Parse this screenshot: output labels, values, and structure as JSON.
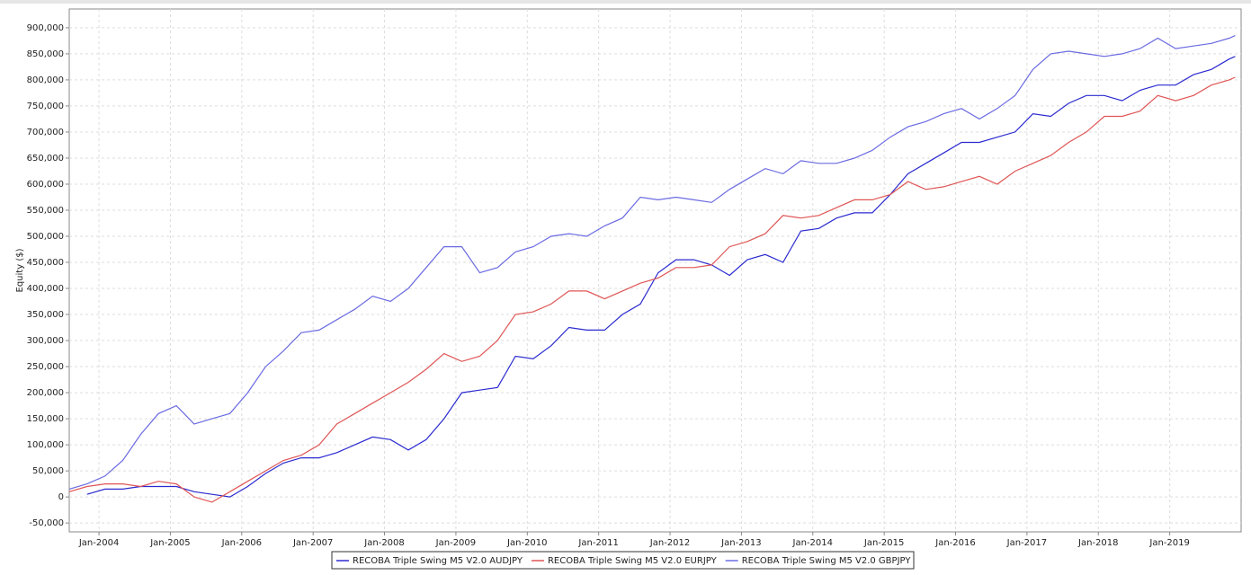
{
  "chart_data": {
    "type": "line",
    "y_label": "Equity ($)",
    "x": [
      "2003-08",
      "2003-11",
      "2004-02",
      "2004-05",
      "2004-08",
      "2004-11",
      "2005-02",
      "2005-05",
      "2005-08",
      "2005-11",
      "2006-02",
      "2006-05",
      "2006-08",
      "2006-11",
      "2007-02",
      "2007-05",
      "2007-08",
      "2007-11",
      "2008-02",
      "2008-05",
      "2008-08",
      "2008-11",
      "2009-02",
      "2009-05",
      "2009-08",
      "2009-11",
      "2010-02",
      "2010-05",
      "2010-08",
      "2010-11",
      "2011-02",
      "2011-05",
      "2011-08",
      "2011-11",
      "2012-02",
      "2012-05",
      "2012-08",
      "2012-11",
      "2013-02",
      "2013-05",
      "2013-08",
      "2013-11",
      "2014-02",
      "2014-05",
      "2014-08",
      "2014-11",
      "2015-02",
      "2015-05",
      "2015-08",
      "2015-11",
      "2016-02",
      "2016-05",
      "2016-08",
      "2016-11",
      "2017-02",
      "2017-05",
      "2017-08",
      "2017-11",
      "2018-02",
      "2018-05",
      "2018-08",
      "2018-11",
      "2019-02",
      "2019-05",
      "2019-08",
      "2019-11",
      "2019-12"
    ],
    "series": [
      {
        "name": "RECOBA Triple Swing M5 V2.0 AUDJPY",
        "color": "#2a2ad0",
        "values": [
          null,
          5000,
          15000,
          15000,
          20000,
          20000,
          20000,
          10000,
          5000,
          0,
          20000,
          45000,
          65000,
          75000,
          75000,
          85000,
          100000,
          115000,
          110000,
          90000,
          110000,
          150000,
          200000,
          205000,
          210000,
          270000,
          265000,
          290000,
          325000,
          320000,
          320000,
          350000,
          370000,
          430000,
          455000,
          455000,
          445000,
          425000,
          455000,
          465000,
          450000,
          510000,
          515000,
          535000,
          545000,
          545000,
          580000,
          620000,
          640000,
          660000,
          680000,
          680000,
          690000,
          700000,
          735000,
          730000,
          755000,
          770000,
          770000,
          760000,
          780000,
          790000,
          790000,
          810000,
          820000,
          840000,
          845000
        ]
      },
      {
        "name": "RECOBA Triple Swing M5 V2.0 EURJPY",
        "color": "#e05555",
        "values": [
          10000,
          20000,
          25000,
          25000,
          20000,
          30000,
          25000,
          0,
          -10000,
          10000,
          30000,
          50000,
          70000,
          80000,
          100000,
          140000,
          160000,
          180000,
          200000,
          220000,
          245000,
          275000,
          260000,
          270000,
          300000,
          350000,
          355000,
          370000,
          395000,
          395000,
          380000,
          395000,
          410000,
          420000,
          440000,
          440000,
          445000,
          480000,
          490000,
          505000,
          540000,
          535000,
          540000,
          555000,
          570000,
          570000,
          580000,
          605000,
          590000,
          595000,
          605000,
          615000,
          600000,
          625000,
          640000,
          655000,
          680000,
          700000,
          730000,
          730000,
          740000,
          770000,
          760000,
          770000,
          790000,
          800000,
          805000
        ]
      },
      {
        "name": "RECOBA Triple Swing M5 V2.0 GBPJPY",
        "color": "#6a6ae2",
        "values": [
          15000,
          25000,
          40000,
          70000,
          120000,
          160000,
          175000,
          140000,
          150000,
          160000,
          200000,
          250000,
          280000,
          315000,
          320000,
          340000,
          360000,
          385000,
          375000,
          400000,
          440000,
          480000,
          480000,
          430000,
          440000,
          470000,
          480000,
          500000,
          505000,
          500000,
          520000,
          535000,
          575000,
          570000,
          575000,
          570000,
          565000,
          590000,
          610000,
          630000,
          620000,
          645000,
          640000,
          640000,
          650000,
          665000,
          690000,
          710000,
          720000,
          735000,
          745000,
          725000,
          745000,
          770000,
          820000,
          850000,
          855000,
          850000,
          845000,
          850000,
          860000,
          880000,
          860000,
          865000,
          870000,
          880000,
          885000
        ]
      }
    ],
    "xlim": [
      "2003-08",
      "2020-01"
    ],
    "xticks": [
      {
        "value": "2004-01",
        "label": "Jan-2004"
      },
      {
        "value": "2005-01",
        "label": "Jan-2005"
      },
      {
        "value": "2006-01",
        "label": "Jan-2006"
      },
      {
        "value": "2007-01",
        "label": "Jan-2007"
      },
      {
        "value": "2008-01",
        "label": "Jan-2008"
      },
      {
        "value": "2009-01",
        "label": "Jan-2009"
      },
      {
        "value": "2010-01",
        "label": "Jan-2010"
      },
      {
        "value": "2011-01",
        "label": "Jan-2011"
      },
      {
        "value": "2012-01",
        "label": "Jan-2012"
      },
      {
        "value": "2013-01",
        "label": "Jan-2013"
      },
      {
        "value": "2014-01",
        "label": "Jan-2014"
      },
      {
        "value": "2015-01",
        "label": "Jan-2015"
      },
      {
        "value": "2016-01",
        "label": "Jan-2016"
      },
      {
        "value": "2017-01",
        "label": "Jan-2017"
      },
      {
        "value": "2018-01",
        "label": "Jan-2018"
      },
      {
        "value": "2019-01",
        "label": "Jan-2019"
      }
    ],
    "ylim": [
      -67000,
      936000
    ],
    "yticks": [
      {
        "value": -50000,
        "label": "-50,000"
      },
      0,
      {
        "value": 50000,
        "label": "50,000"
      },
      {
        "value": 100000,
        "label": "100,000"
      },
      {
        "value": 150000,
        "label": "150,000"
      },
      {
        "value": 200000,
        "label": "200,000"
      },
      {
        "value": 250000,
        "label": "250,000"
      },
      {
        "value": 300000,
        "label": "300,000"
      },
      {
        "value": 350000,
        "label": "350,000"
      },
      {
        "value": 400000,
        "label": "400,000"
      },
      {
        "value": 450000,
        "label": "450,000"
      },
      {
        "value": 500000,
        "label": "500,000"
      },
      {
        "value": 550000,
        "label": "550,000"
      },
      {
        "value": 600000,
        "label": "600,000"
      },
      {
        "value": 650000,
        "label": "650,000"
      },
      {
        "value": 700000,
        "label": "700,000"
      },
      {
        "value": 750000,
        "label": "750,000"
      },
      {
        "value": 800000,
        "label": "800,000"
      },
      {
        "value": 850000,
        "label": "850,000"
      },
      {
        "value": 900000,
        "label": "900,000"
      }
    ],
    "grid": true
  }
}
